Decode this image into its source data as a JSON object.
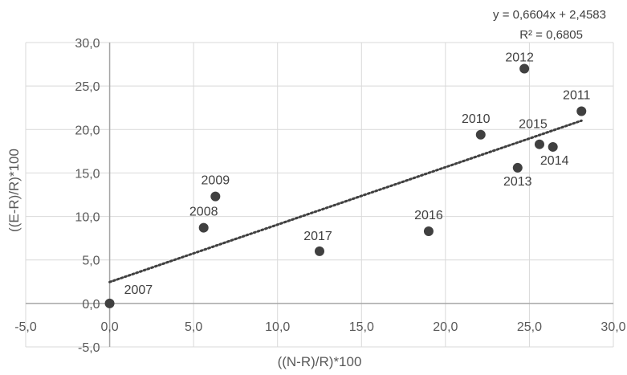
{
  "chart_data": {
    "type": "scatter",
    "xlabel": "((N-R)/R)*100",
    "ylabel": "((E-R)/R)*100",
    "xlim": [
      -5,
      30
    ],
    "ylim": [
      -5,
      30
    ],
    "x_ticks": [
      "-5,0",
      "0,0",
      "5,0",
      "10,0",
      "15,0",
      "20,0",
      "25,0",
      "30,0"
    ],
    "y_ticks": [
      "-5,0",
      "0,0",
      "5,0",
      "10,0",
      "15,0",
      "20,0",
      "25,0",
      "30,0"
    ],
    "grid": true,
    "marker_color": "#404040",
    "points": [
      {
        "label": "2007",
        "x": 0.0,
        "y": 0.0
      },
      {
        "label": "2008",
        "x": 5.6,
        "y": 8.7
      },
      {
        "label": "2009",
        "x": 6.3,
        "y": 12.3
      },
      {
        "label": "2010",
        "x": 22.1,
        "y": 19.4
      },
      {
        "label": "2011",
        "x": 28.1,
        "y": 22.1
      },
      {
        "label": "2012",
        "x": 24.7,
        "y": 27.0
      },
      {
        "label": "2013",
        "x": 24.3,
        "y": 15.6
      },
      {
        "label": "2014",
        "x": 26.4,
        "y": 18.0
      },
      {
        "label": "2015",
        "x": 25.6,
        "y": 18.3
      },
      {
        "label": "2016",
        "x": 19.0,
        "y": 8.3
      },
      {
        "label": "2017",
        "x": 12.5,
        "y": 6.0
      }
    ],
    "trendline": {
      "type": "linear",
      "slope": 0.6604,
      "intercept": 2.4583,
      "x_range": [
        0,
        28.1
      ],
      "equation_text": "y = 0,6604x + 2,4583",
      "r2_text": "R² = 0,6805"
    }
  }
}
